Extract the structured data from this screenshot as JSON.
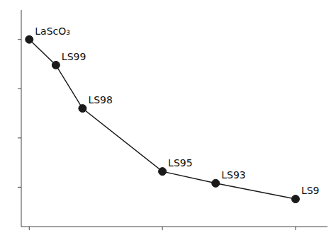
{
  "chart_data": {
    "type": "line",
    "x": [
      0,
      1,
      2,
      5,
      7,
      10
    ],
    "values": [
      9.5,
      8.2,
      6.0,
      2.8,
      2.2,
      1.4
    ],
    "annotations": [
      "LaScO₃",
      "LS99",
      "LS98",
      "LS95",
      "LS93",
      "LS9"
    ],
    "color": "#1a1a1a",
    "marker": "circle",
    "xlim": [
      -0.3,
      11.2
    ],
    "ylim": [
      0,
      11.0
    ],
    "xticks": [
      0,
      5,
      10
    ],
    "yticks": [
      2.0,
      4.5,
      7.0,
      9.5
    ],
    "grid": false,
    "tick_labels": false
  }
}
